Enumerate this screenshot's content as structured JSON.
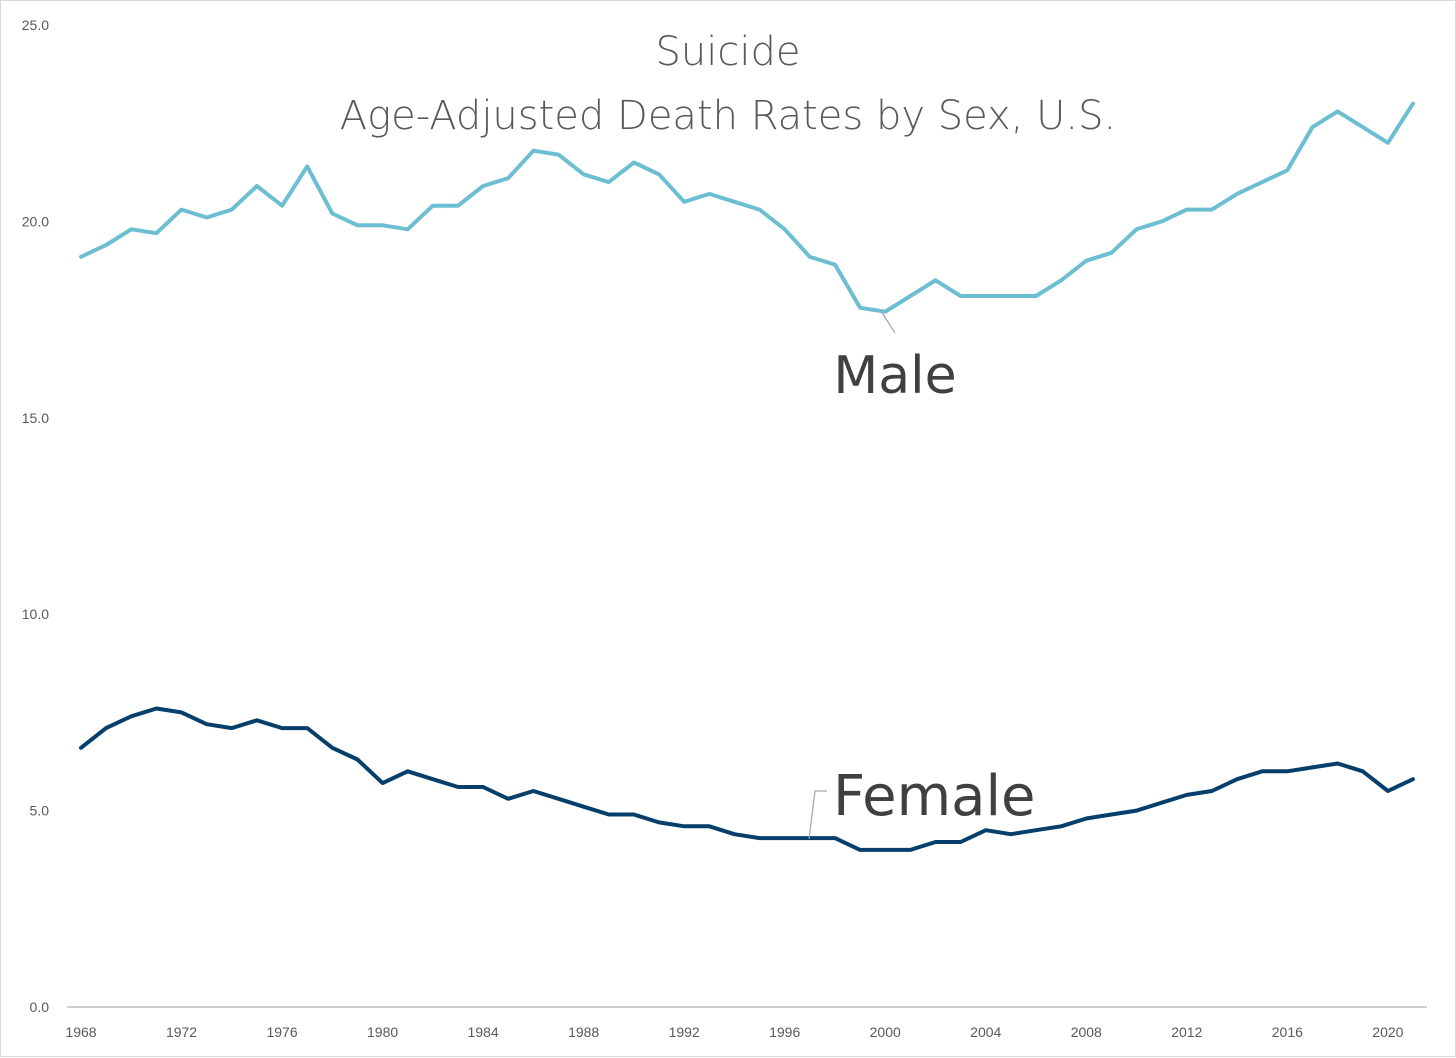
{
  "chart_data": {
    "type": "line",
    "title": "Suicide",
    "subtitle": "Age-Adjusted Death Rates by Sex, U.S.",
    "xlabel": "",
    "ylabel": "",
    "ylim": [
      0,
      25
    ],
    "y_ticks": [
      "0.0",
      "5.0",
      "10.0",
      "15.0",
      "20.0",
      "25.0"
    ],
    "x_ticks": [
      "1968",
      "1972",
      "1976",
      "1980",
      "1984",
      "1988",
      "1992",
      "1996",
      "2000",
      "2004",
      "2008",
      "2012",
      "2016",
      "2020"
    ],
    "grid": false,
    "legend": "none (direct data labels)",
    "x": [
      1968,
      1969,
      1970,
      1971,
      1972,
      1973,
      1974,
      1975,
      1976,
      1977,
      1978,
      1979,
      1980,
      1981,
      1982,
      1983,
      1984,
      1985,
      1986,
      1987,
      1988,
      1989,
      1990,
      1991,
      1992,
      1993,
      1994,
      1995,
      1996,
      1997,
      1998,
      1999,
      2000,
      2001,
      2002,
      2003,
      2004,
      2005,
      2006,
      2007,
      2008,
      2009,
      2010,
      2011,
      2012,
      2013,
      2014,
      2015,
      2016,
      2017,
      2018,
      2019,
      2020,
      2021
    ],
    "series": [
      {
        "name": "Male",
        "color": "#6cbfd3",
        "values": [
          19.1,
          19.4,
          19.8,
          19.7,
          20.3,
          20.1,
          20.3,
          20.9,
          20.4,
          21.4,
          20.2,
          19.9,
          19.9,
          19.8,
          20.4,
          20.4,
          20.9,
          21.1,
          21.8,
          21.7,
          21.2,
          21.0,
          21.5,
          21.2,
          20.5,
          20.7,
          20.5,
          20.3,
          19.8,
          19.1,
          18.9,
          17.8,
          17.7,
          18.1,
          18.5,
          18.1,
          18.1,
          18.1,
          18.1,
          18.5,
          19.0,
          19.2,
          19.8,
          20.0,
          20.3,
          20.3,
          20.7,
          21.0,
          21.3,
          22.4,
          22.8,
          22.4,
          22.0,
          23.0
        ]
      },
      {
        "name": "Female",
        "color": "#063f6b",
        "values": [
          6.6,
          7.1,
          7.4,
          7.6,
          7.5,
          7.2,
          7.1,
          7.3,
          7.1,
          7.1,
          6.6,
          6.3,
          5.7,
          6.0,
          5.8,
          5.6,
          5.6,
          5.3,
          5.5,
          5.3,
          5.1,
          4.9,
          4.9,
          4.7,
          4.6,
          4.6,
          4.4,
          4.3,
          4.3,
          4.3,
          4.3,
          4.0,
          4.0,
          4.0,
          4.2,
          4.2,
          4.5,
          4.4,
          4.5,
          4.6,
          4.8,
          4.9,
          5.0,
          5.2,
          5.4,
          5.5,
          5.8,
          6.0,
          6.0,
          6.1,
          6.2,
          6.0,
          5.5,
          5.8
        ]
      }
    ]
  }
}
